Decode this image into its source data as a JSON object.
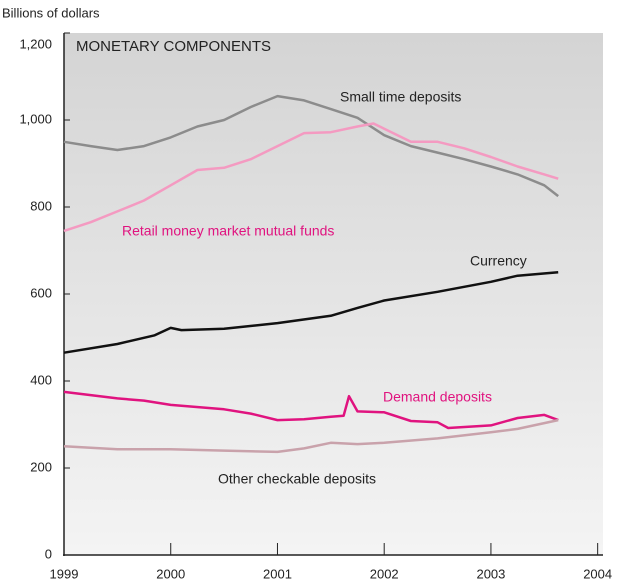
{
  "chart_data": {
    "type": "line",
    "title": "MONETARY COMPONENTS",
    "y_axis_label": "Billions of dollars",
    "xlim": [
      1999,
      2004.05
    ],
    "xticks": [
      1999,
      2000,
      2001,
      2002,
      2003,
      2004
    ],
    "ylim": [
      0,
      1200
    ],
    "yticks": [
      0,
      200,
      400,
      600,
      800,
      {
        "value": 1000,
        "label": "1,000"
      },
      {
        "value": 1200,
        "label": "1,200"
      }
    ],
    "series": [
      {
        "name": "Small time deposits",
        "color": "#8c8c8c",
        "x": [
          1999,
          1999.25,
          1999.5,
          1999.75,
          2000,
          2000.25,
          2000.5,
          2000.75,
          2001,
          2001.25,
          2001.5,
          2001.75,
          2002,
          2002.25,
          2002.5,
          2002.75,
          2003,
          2003.25,
          2003.5,
          2003.63
        ],
        "values": [
          950,
          940,
          931,
          940,
          960,
          985,
          1000,
          1030,
          1055,
          1045,
          1025,
          1005,
          965,
          940,
          925,
          910,
          893,
          875,
          850,
          825
        ]
      },
      {
        "name": "Retail money market mutual funds",
        "color": "#f49ac1",
        "x": [
          1999,
          1999.25,
          1999.5,
          1999.75,
          2000,
          2000.25,
          2000.5,
          2000.75,
          2001,
          2001.25,
          2001.5,
          2001.75,
          2001.9,
          2002,
          2002.25,
          2002.5,
          2002.75,
          2003,
          2003.25,
          2003.5,
          2003.63
        ],
        "values": [
          745,
          765,
          790,
          815,
          850,
          885,
          890,
          910,
          940,
          970,
          972,
          985,
          992,
          980,
          950,
          950,
          935,
          915,
          893,
          875,
          865
        ]
      },
      {
        "name": "Currency",
        "color": "#111111",
        "x": [
          1999,
          1999.5,
          1999.85,
          2000,
          2000.1,
          2000.5,
          2001,
          2001.5,
          2001.75,
          2002,
          2002.5,
          2003,
          2003.25,
          2003.63
        ],
        "values": [
          465,
          485,
          505,
          522,
          517,
          520,
          533,
          550,
          568,
          585,
          605,
          628,
          642,
          650
        ]
      },
      {
        "name": "Demand deposits",
        "color": "#e0137f",
        "x": [
          1999,
          1999.5,
          1999.75,
          2000,
          2000.5,
          2000.75,
          2001,
          2001.25,
          2001.5,
          2001.62,
          2001.67,
          2001.75,
          2002,
          2002.25,
          2002.5,
          2002.6,
          2003,
          2003.25,
          2003.5,
          2003.63
        ],
        "values": [
          375,
          360,
          355,
          345,
          335,
          325,
          310,
          312,
          318,
          320,
          365,
          330,
          328,
          308,
          305,
          292,
          298,
          315,
          322,
          310
        ]
      },
      {
        "name": "Other checkable deposits",
        "color": "#c9a2ab",
        "x": [
          1999,
          1999.5,
          2000,
          2000.5,
          2001,
          2001.25,
          2001.5,
          2001.75,
          2002,
          2002.5,
          2003,
          2003.25,
          2003.63
        ],
        "values": [
          250,
          243,
          243,
          240,
          237,
          245,
          258,
          255,
          258,
          268,
          282,
          290,
          310
        ]
      }
    ]
  }
}
